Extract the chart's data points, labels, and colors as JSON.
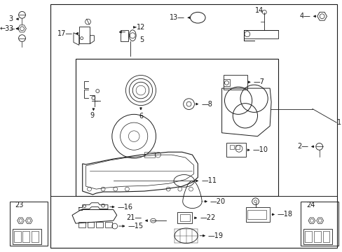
{
  "bg_color": "#ffffff",
  "line_color": "#1a1a1a",
  "fig_width": 4.89,
  "fig_height": 3.6,
  "dpi": 100,
  "font_size": 7.0
}
